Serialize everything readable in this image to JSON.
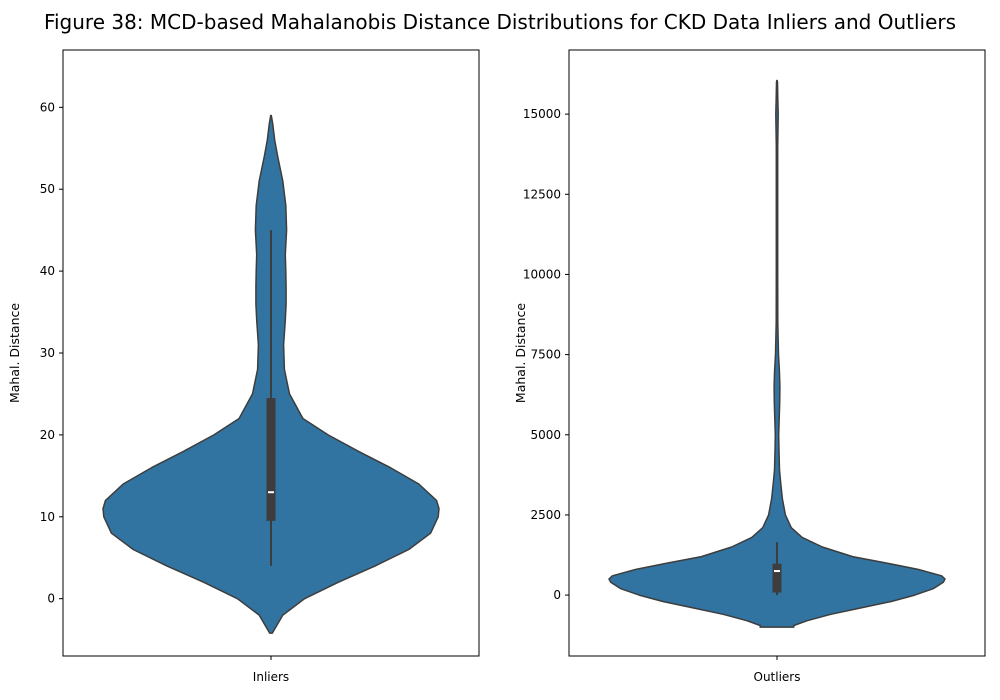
{
  "figure_title": "Figure 38: MCD-based Mahalanobis Distance Distributions for CKD Data Inliers and Outliers",
  "colors": {
    "violin_fill": "#3274a1",
    "violin_edge": "#3d3d3d",
    "box": "#3d3d3d",
    "median": "#ffffff",
    "frame": "#000000"
  },
  "chart_data": [
    {
      "type": "violin",
      "title": "",
      "xlabel": "",
      "ylabel": "Mahal. Distance",
      "categories": [
        "Inliers"
      ],
      "ylim": [
        -7,
        67
      ],
      "yticks": [
        0,
        10,
        20,
        30,
        40,
        50,
        60
      ],
      "grid": false,
      "density": {
        "y": [
          -4.2,
          -2,
          0,
          2,
          4,
          6,
          8,
          10,
          11,
          12,
          14,
          16,
          18,
          20,
          22,
          25,
          28,
          31,
          34,
          36,
          38,
          40,
          42,
          45,
          48,
          51,
          54,
          56,
          58,
          59
        ],
        "width": [
          0.008,
          0.07,
          0.2,
          0.4,
          0.62,
          0.82,
          0.95,
          0.995,
          1.0,
          0.985,
          0.88,
          0.71,
          0.52,
          0.34,
          0.19,
          0.11,
          0.08,
          0.075,
          0.085,
          0.09,
          0.09,
          0.088,
          0.085,
          0.093,
          0.088,
          0.07,
          0.04,
          0.022,
          0.01,
          0.002
        ]
      },
      "box": {
        "whisker_low": 4,
        "q1": 9.5,
        "median": 13,
        "q3": 24.5,
        "whisker_high": 45
      }
    },
    {
      "type": "violin",
      "title": "",
      "xlabel": "",
      "ylabel": "Mahal. Distance",
      "categories": [
        "Outliers"
      ],
      "ylim": [
        -1900,
        17000
      ],
      "yticks": [
        0,
        2500,
        5000,
        7500,
        10000,
        12500,
        15000
      ],
      "grid": false,
      "density": {
        "y": [
          -1000,
          -950,
          -800,
          -600,
          -400,
          -200,
          0,
          200,
          400,
          500,
          600,
          800,
          1000,
          1200,
          1500,
          1800,
          2100,
          2500,
          3000,
          3500,
          3900,
          4500,
          5000,
          5500,
          6000,
          6500,
          7000,
          7500,
          8500,
          10000,
          12000,
          14000,
          14600,
          15000,
          15500,
          16000,
          16050
        ],
        "width": [
          0.1,
          0.1,
          0.18,
          0.32,
          0.5,
          0.68,
          0.82,
          0.93,
          0.99,
          1.0,
          0.98,
          0.84,
          0.65,
          0.45,
          0.27,
          0.15,
          0.085,
          0.05,
          0.032,
          0.022,
          0.015,
          0.012,
          0.01,
          0.013,
          0.016,
          0.017,
          0.014,
          0.009,
          0.005,
          0.004,
          0.004,
          0.004,
          0.006,
          0.007,
          0.005,
          0.003,
          0.001
        ]
      },
      "box": {
        "whisker_low": 0,
        "q1": 80,
        "median": 750,
        "q3": 980,
        "whisker_high": 1650
      }
    }
  ]
}
